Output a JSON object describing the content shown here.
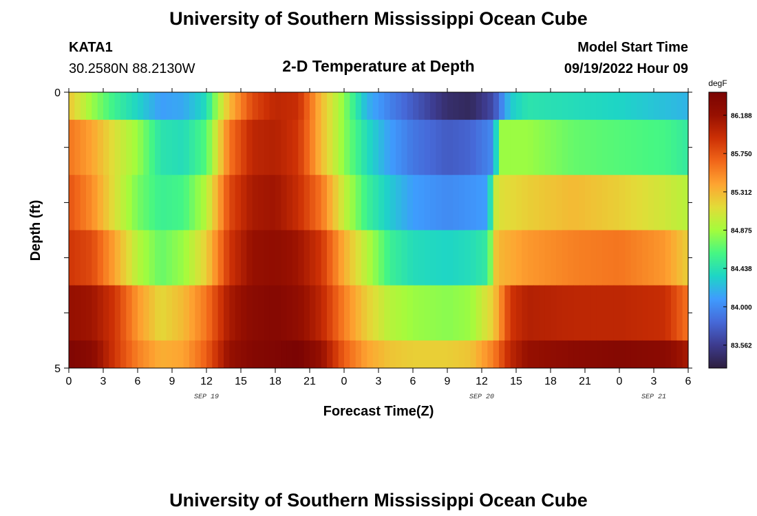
{
  "page": {
    "title": "University of Southern Mississippi Ocean Cube",
    "station_id": "KATA1",
    "coordinates": "30.2580N  88.2130W",
    "subtitle": "2-D Temperature at Depth",
    "model_start_label": "Model Start Time",
    "model_start_value": "09/19/2022 Hour 09",
    "footer_title": "University of Southern Mississippi Ocean Cube"
  },
  "chart_data": {
    "type": "heatmap",
    "title": "2-D Temperature at Depth",
    "xlabel": "Forecast Time(Z)",
    "ylabel": "Depth (ft)",
    "x_hours_range": [
      0,
      54
    ],
    "x_tick_step_hours": 3,
    "x_tick_labels": [
      "0",
      "3",
      "6",
      "9",
      "12",
      "15",
      "18",
      "21",
      "0",
      "3",
      "6",
      "9",
      "12",
      "15",
      "18",
      "21",
      "0",
      "3",
      "6"
    ],
    "date_labels": [
      {
        "text": "SEP 19",
        "hour": 12
      },
      {
        "text": "SEP 20",
        "hour": 36
      },
      {
        "text": "SEP 21",
        "hour": 51
      }
    ],
    "ylim": [
      0,
      5
    ],
    "y_tick_labels": [
      "0",
      "5"
    ],
    "depth_levels": 5,
    "colorbar": {
      "unit": "degF",
      "min": 83.3,
      "max": 86.45,
      "tick_labels": [
        "86.188",
        "85.750",
        "85.312",
        "84.875",
        "84.438",
        "84.000",
        "83.562"
      ],
      "colors": [
        "#2d1e3e",
        "#3d3b8e",
        "#4669d8",
        "#3f9bfe",
        "#1ed5c6",
        "#46f783",
        "#a4fc3c",
        "#e2dc38",
        "#fea431",
        "#f16619",
        "#cc3005",
        "#971001",
        "#7a0403"
      ]
    },
    "rows": [
      {
        "depth_band": "0-0.5 ft",
        "keys": [
          [
            0,
            85.25
          ],
          [
            2,
            84.85
          ],
          [
            4,
            84.55
          ],
          [
            6,
            84.35
          ],
          [
            8,
            84.1
          ],
          [
            10,
            84.15
          ],
          [
            12,
            84.4
          ],
          [
            13,
            84.9
          ],
          [
            14,
            85.3
          ],
          [
            16,
            85.8
          ],
          [
            18,
            86.0
          ],
          [
            20,
            85.95
          ],
          [
            22,
            85.3
          ],
          [
            24,
            84.8
          ],
          [
            26,
            84.2
          ],
          [
            28,
            83.95
          ],
          [
            30,
            83.75
          ],
          [
            33,
            83.45
          ],
          [
            35,
            83.4
          ],
          [
            37,
            83.65
          ],
          [
            38.5,
            84.3
          ],
          [
            40,
            84.45
          ],
          [
            44,
            84.4
          ],
          [
            48,
            84.35
          ],
          [
            52,
            84.25
          ],
          [
            54,
            84.2
          ]
        ]
      },
      {
        "depth_band": "0.5-1.5 ft",
        "keys": [
          [
            0,
            85.6
          ],
          [
            2,
            85.4
          ],
          [
            4,
            85.1
          ],
          [
            6,
            84.85
          ],
          [
            8,
            84.45
          ],
          [
            10,
            84.4
          ],
          [
            12,
            84.65
          ],
          [
            14,
            85.6
          ],
          [
            16,
            86.0
          ],
          [
            18,
            86.05
          ],
          [
            20,
            85.9
          ],
          [
            22,
            85.3
          ],
          [
            24,
            84.8
          ],
          [
            26,
            84.4
          ],
          [
            28,
            84.1
          ],
          [
            30,
            83.9
          ],
          [
            33,
            83.75
          ],
          [
            35,
            83.8
          ],
          [
            37,
            84.0
          ],
          [
            37.6,
            84.85
          ],
          [
            40,
            84.85
          ],
          [
            44,
            84.7
          ],
          [
            48,
            84.65
          ],
          [
            52,
            84.6
          ],
          [
            54,
            84.5
          ]
        ]
      },
      {
        "depth_band": "1.5-2.5 ft",
        "keys": [
          [
            0,
            85.75
          ],
          [
            2,
            85.5
          ],
          [
            4,
            85.1
          ],
          [
            6,
            84.75
          ],
          [
            8,
            84.55
          ],
          [
            10,
            84.6
          ],
          [
            12,
            84.95
          ],
          [
            14,
            85.8
          ],
          [
            16,
            86.1
          ],
          [
            18,
            86.15
          ],
          [
            20,
            85.95
          ],
          [
            22,
            85.6
          ],
          [
            24,
            85.0
          ],
          [
            26,
            84.55
          ],
          [
            28,
            84.3
          ],
          [
            30,
            84.1
          ],
          [
            33,
            84.0
          ],
          [
            35,
            84.05
          ],
          [
            36.5,
            84.1
          ],
          [
            37.3,
            85.1
          ],
          [
            40,
            85.2
          ],
          [
            44,
            85.3
          ],
          [
            48,
            85.2
          ],
          [
            52,
            85.05
          ],
          [
            54,
            84.95
          ]
        ]
      },
      {
        "depth_band": "2.5-3.5 ft",
        "keys": [
          [
            0,
            85.9
          ],
          [
            2,
            85.8
          ],
          [
            4,
            85.4
          ],
          [
            6,
            84.95
          ],
          [
            8,
            84.7
          ],
          [
            10,
            84.85
          ],
          [
            12,
            85.2
          ],
          [
            14,
            85.9
          ],
          [
            16,
            86.2
          ],
          [
            18,
            86.25
          ],
          [
            20,
            86.15
          ],
          [
            22,
            85.9
          ],
          [
            24,
            85.35
          ],
          [
            26,
            84.95
          ],
          [
            28,
            84.55
          ],
          [
            30,
            84.4
          ],
          [
            33,
            84.35
          ],
          [
            35,
            84.4
          ],
          [
            36.5,
            84.5
          ],
          [
            37.3,
            85.3
          ],
          [
            40,
            85.45
          ],
          [
            44,
            85.55
          ],
          [
            48,
            85.6
          ],
          [
            52,
            85.45
          ],
          [
            54,
            85.2
          ]
        ]
      },
      {
        "depth_band": "3.5-4.5 ft",
        "keys": [
          [
            0,
            86.2
          ],
          [
            2,
            86.15
          ],
          [
            4,
            85.9
          ],
          [
            6,
            85.45
          ],
          [
            8,
            85.15
          ],
          [
            10,
            85.3
          ],
          [
            12,
            85.6
          ],
          [
            14,
            86.1
          ],
          [
            16,
            86.3
          ],
          [
            18,
            86.35
          ],
          [
            20,
            86.25
          ],
          [
            22,
            86.0
          ],
          [
            24,
            85.55
          ],
          [
            26,
            85.2
          ],
          [
            28,
            84.95
          ],
          [
            30,
            84.85
          ],
          [
            33,
            84.8
          ],
          [
            35,
            84.85
          ],
          [
            37,
            85.2
          ],
          [
            38.5,
            85.9
          ],
          [
            40,
            86.05
          ],
          [
            44,
            86.0
          ],
          [
            48,
            86.0
          ],
          [
            52,
            85.95
          ],
          [
            54,
            85.6
          ]
        ]
      },
      {
        "depth_band": "4.5-5 ft",
        "keys": [
          [
            0,
            86.4
          ],
          [
            2,
            86.3
          ],
          [
            4,
            85.9
          ],
          [
            6,
            85.55
          ],
          [
            8,
            85.35
          ],
          [
            10,
            85.4
          ],
          [
            12,
            85.7
          ],
          [
            14,
            86.2
          ],
          [
            16,
            86.35
          ],
          [
            18,
            86.4
          ],
          [
            20,
            86.45
          ],
          [
            22,
            86.2
          ],
          [
            24,
            85.7
          ],
          [
            26,
            85.4
          ],
          [
            28,
            85.25
          ],
          [
            30,
            85.2
          ],
          [
            33,
            85.2
          ],
          [
            35,
            85.25
          ],
          [
            37,
            85.55
          ],
          [
            38.5,
            86.0
          ],
          [
            40,
            86.2
          ],
          [
            44,
            86.3
          ],
          [
            48,
            86.35
          ],
          [
            52,
            86.3
          ],
          [
            54,
            86.1
          ]
        ]
      }
    ]
  }
}
